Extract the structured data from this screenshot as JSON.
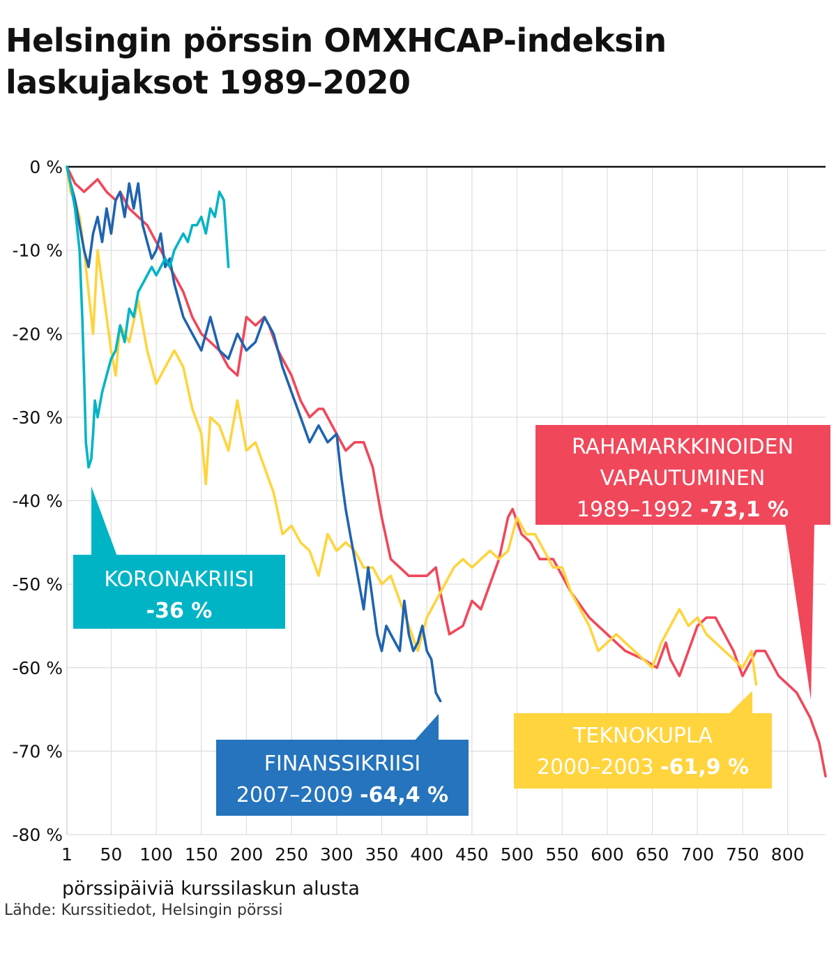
{
  "title": "Helsingin pörssin OMXHCAP-indeksin laskujaksot 1989–2020",
  "source": "Lähde: Kurssitiedot, Helsingin pörssi",
  "chart_data": {
    "type": "line",
    "title": "Helsingin pörssin OMXHCAP-indeksin laskujaksot 1989–2020",
    "xlabel": "pörssipäiviä kurssilaskun alusta",
    "ylabel": "",
    "xlim": [
      1,
      842
    ],
    "ylim": [
      -80,
      0
    ],
    "grid": true,
    "x_ticks": [
      1,
      50,
      100,
      150,
      200,
      250,
      300,
      350,
      400,
      450,
      500,
      550,
      600,
      650,
      700,
      750,
      800
    ],
    "x_tick_labels": [
      "1",
      "50",
      "100",
      "150",
      "200",
      "250",
      "300",
      "350",
      "400",
      "450",
      "500",
      "550",
      "600",
      "650",
      "700",
      "750",
      "800"
    ],
    "y_ticks": [
      0,
      -10,
      -20,
      -30,
      -40,
      -50,
      -60,
      -70,
      -80
    ],
    "y_tick_labels": [
      "0 %",
      "-10 %",
      "-20 %",
      "-30 %",
      "-40 %",
      "-50 %",
      "-60 %",
      "-70 %",
      "-80 %"
    ],
    "series": [
      {
        "key": "raha",
        "color": "#f0475a",
        "x": [
          1,
          10,
          20,
          30,
          35,
          45,
          55,
          60,
          70,
          80,
          90,
          100,
          110,
          120,
          130,
          140,
          150,
          160,
          170,
          180,
          190,
          200,
          210,
          220,
          225,
          235,
          250,
          260,
          270,
          280,
          285,
          290,
          300,
          310,
          320,
          330,
          340,
          350,
          360,
          370,
          380,
          390,
          400,
          410,
          415,
          425,
          440,
          450,
          460,
          470,
          480,
          490,
          495,
          505,
          515,
          525,
          540,
          560,
          580,
          600,
          620,
          640,
          655,
          665,
          670,
          680,
          690,
          700,
          710,
          720,
          730,
          740,
          750,
          765,
          775,
          790,
          810,
          825,
          835,
          842
        ],
        "y": [
          0,
          -2,
          -3,
          -2,
          -1.5,
          -3,
          -4,
          -3,
          -5,
          -6,
          -7,
          -9,
          -11,
          -13,
          -15,
          -18,
          -20,
          -21,
          -22,
          -24,
          -25,
          -18,
          -19,
          -18,
          -19,
          -22,
          -25,
          -28,
          -30,
          -29,
          -29,
          -30,
          -32,
          -34,
          -33,
          -33,
          -36,
          -42,
          -47,
          -48,
          -49,
          -49,
          -49,
          -48,
          -51,
          -56,
          -55,
          -52,
          -53,
          -50,
          -47,
          -42,
          -41,
          -44,
          -45,
          -47,
          -47,
          -51,
          -54,
          -56,
          -58,
          -59,
          -60,
          -57,
          -59,
          -61,
          -58,
          -55,
          -54,
          -54,
          -56,
          -58,
          -61,
          -58,
          -58,
          -61,
          -63,
          -66,
          -69,
          -73
        ]
      },
      {
        "key": "tekno",
        "color": "#ffd43d",
        "x": [
          1,
          5,
          10,
          15,
          20,
          25,
          30,
          35,
          40,
          45,
          50,
          55,
          60,
          70,
          80,
          90,
          100,
          110,
          120,
          130,
          140,
          150,
          155,
          160,
          170,
          180,
          190,
          200,
          210,
          220,
          230,
          240,
          250,
          260,
          270,
          280,
          290,
          300,
          310,
          320,
          330,
          340,
          350,
          360,
          370,
          380,
          390,
          400,
          410,
          420,
          430,
          440,
          450,
          460,
          470,
          480,
          490,
          500,
          510,
          520,
          530,
          540,
          550,
          560,
          570,
          580,
          590,
          600,
          610,
          620,
          630,
          640,
          650,
          660,
          670,
          680,
          690,
          700,
          710,
          720,
          730,
          740,
          750,
          760,
          765
        ],
        "y": [
          0,
          -3,
          -4,
          -6,
          -10,
          -15,
          -20,
          -10,
          -14,
          -18,
          -22,
          -25,
          -19,
          -21,
          -16,
          -22,
          -26,
          -24,
          -22,
          -24,
          -29,
          -32,
          -38,
          -30,
          -31,
          -34,
          -28,
          -34,
          -33,
          -36,
          -39,
          -44,
          -43,
          -45,
          -46,
          -49,
          -44,
          -46,
          -45,
          -46,
          -48,
          -48,
          -50,
          -49,
          -52,
          -55,
          -58,
          -54,
          -52,
          -50,
          -48,
          -47,
          -48,
          -47,
          -46,
          -47,
          -46,
          -42,
          -44,
          -44,
          -46,
          -48,
          -48,
          -51,
          -53,
          -55,
          -58,
          -57,
          -56,
          -57,
          -58,
          -59,
          -60,
          -57,
          -55,
          -53,
          -55,
          -54,
          -56,
          -57,
          -58,
          -59,
          -60,
          -58,
          -62
        ]
      },
      {
        "key": "finanssi",
        "color": "#1f63b0",
        "x": [
          1,
          5,
          10,
          15,
          20,
          25,
          30,
          35,
          40,
          45,
          50,
          55,
          60,
          65,
          70,
          75,
          80,
          85,
          90,
          95,
          100,
          105,
          110,
          115,
          120,
          130,
          140,
          150,
          160,
          170,
          180,
          190,
          200,
          210,
          220,
          230,
          240,
          250,
          260,
          270,
          280,
          290,
          300,
          305,
          310,
          315,
          320,
          325,
          330,
          335,
          340,
          345,
          350,
          355,
          360,
          365,
          370,
          375,
          380,
          385,
          390,
          395,
          400,
          405,
          410,
          415
        ],
        "y": [
          0,
          -2,
          -4,
          -7,
          -10,
          -12,
          -8,
          -6,
          -9,
          -5,
          -8,
          -4,
          -3,
          -6,
          -2,
          -5,
          -2,
          -7,
          -9,
          -11,
          -10,
          -8,
          -12,
          -11,
          -14,
          -18,
          -20,
          -22,
          -18,
          -22,
          -23,
          -20,
          -22,
          -21,
          -18,
          -20,
          -24,
          -27,
          -30,
          -33,
          -31,
          -33,
          -32,
          -37,
          -41,
          -44,
          -47,
          -50,
          -53,
          -48,
          -52,
          -56,
          -58,
          -55,
          -56,
          -57,
          -58,
          -52,
          -56,
          -58,
          -57,
          -55,
          -58,
          -59,
          -63,
          -64
        ]
      },
      {
        "key": "korona",
        "color": "#00b4c5",
        "x": [
          1,
          5,
          10,
          15,
          18,
          20,
          22,
          25,
          28,
          30,
          32,
          35,
          40,
          45,
          50,
          55,
          60,
          65,
          70,
          75,
          80,
          85,
          90,
          95,
          100,
          105,
          110,
          115,
          120,
          125,
          130,
          135,
          140,
          145,
          150,
          155,
          160,
          165,
          170,
          175,
          180
        ],
        "y": [
          0,
          -2,
          -5,
          -10,
          -18,
          -25,
          -33,
          -36,
          -35,
          -32,
          -28,
          -30,
          -27,
          -25,
          -23,
          -22,
          -19,
          -21,
          -17,
          -18,
          -15,
          -14,
          -13,
          -12,
          -13,
          -12,
          -11,
          -12,
          -10,
          -9,
          -8,
          -9,
          -7,
          -7,
          -6,
          -8,
          -5,
          -6,
          -3,
          -4,
          -12
        ]
      }
    ],
    "annotations": [
      {
        "key": "korona",
        "color": "#00b4c5",
        "lines": [
          [
            {
              "t": "KORONAKRIISI",
              "b": false
            }
          ],
          [
            {
              "t": "-36 %",
              "b": true
            }
          ]
        ]
      },
      {
        "key": "finanssi",
        "color": "#2574bd",
        "lines": [
          [
            {
              "t": "FINANSSIKRIISI",
              "b": false
            }
          ],
          [
            {
              "t": "2007–2009 ",
              "b": false
            },
            {
              "t": "-64,4 %",
              "b": true
            }
          ]
        ]
      },
      {
        "key": "tekno",
        "color": "#ffd43d",
        "lines": [
          [
            {
              "t": "TEKNOKUPLA",
              "b": false
            }
          ],
          [
            {
              "t": "2000–2003 ",
              "b": false
            },
            {
              "t": "-61,9 %",
              "b": true
            }
          ]
        ]
      },
      {
        "key": "raha",
        "color": "#f0475a",
        "lines": [
          [
            {
              "t": "RAHAMARKKINOIDEN",
              "b": false
            }
          ],
          [
            {
              "t": "VAPAUTUMINEN",
              "b": false
            }
          ],
          [
            {
              "t": "1989–1992 ",
              "b": false
            },
            {
              "t": "-73,1 %",
              "b": true
            }
          ]
        ]
      }
    ]
  }
}
